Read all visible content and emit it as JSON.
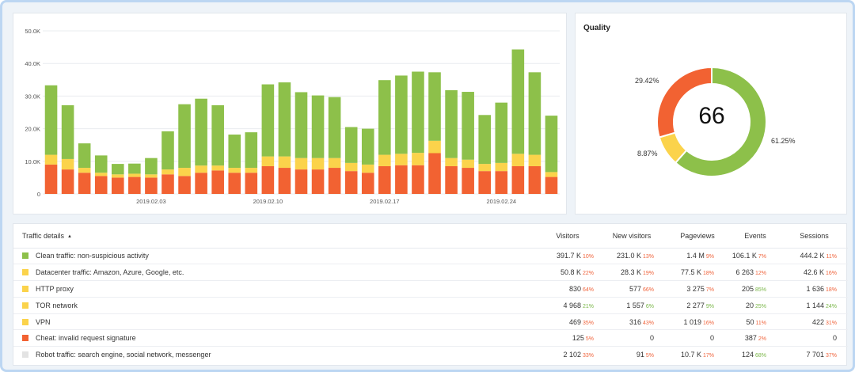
{
  "colors": {
    "clean": "#8dc04a",
    "suspicious": "#fbd34b",
    "cheat": "#f26232",
    "robot": "#e3e3e3",
    "up": "#7ab648",
    "down": "#f0643c"
  },
  "chart_data": {
    "type": "bar",
    "stacked": true,
    "ylim": [
      0,
      50000
    ],
    "yticks": [
      "0",
      "10.0K",
      "20.0K",
      "30.0K",
      "40.0K",
      "50.0K"
    ],
    "xticks": [
      {
        "label": "2019.02.03",
        "index": 6
      },
      {
        "label": "2019.02.10",
        "index": 13
      },
      {
        "label": "2019.02.17",
        "index": 20
      },
      {
        "label": "2019.02.24",
        "index": 27
      }
    ],
    "grid": true,
    "series": [
      {
        "color_key": "cheat",
        "values": [
          9000,
          7500,
          6500,
          5500,
          5000,
          5200,
          5000,
          6000,
          5500,
          6500,
          7200,
          6500,
          6500,
          8500,
          8000,
          7500,
          7500,
          8000,
          7000,
          6500,
          8500,
          8800,
          8800,
          12500,
          8500,
          8000,
          7000,
          7000,
          8500,
          8500,
          5200
        ]
      },
      {
        "color_key": "suspicious",
        "values": [
          3000,
          3200,
          1500,
          1000,
          1000,
          1000,
          1000,
          1500,
          2500,
          2200,
          1500,
          1500,
          1500,
          3000,
          3500,
          3500,
          3500,
          3000,
          2500,
          2500,
          3500,
          3500,
          3800,
          3800,
          2500,
          2500,
          2200,
          2500,
          3800,
          3500,
          1500
        ]
      },
      {
        "color_key": "clean",
        "values": [
          21300,
          16500,
          7500,
          5300,
          3200,
          3100,
          5000,
          11700,
          19500,
          20500,
          18500,
          10200,
          10900,
          22100,
          22700,
          20200,
          19200,
          18700,
          11000,
          11000,
          22900,
          24000,
          24900,
          21000,
          20800,
          20800,
          15000,
          18500,
          32000,
          25300,
          17300
        ]
      }
    ]
  },
  "quality": {
    "title": "Quality",
    "score": "66",
    "slices": [
      {
        "color_key": "clean",
        "value": 61.25,
        "label": "61.25%"
      },
      {
        "color_key": "suspicious",
        "value": 8.87,
        "label": "8.87%"
      },
      {
        "color_key": "cheat",
        "value": 29.42,
        "label": "29.42%"
      }
    ]
  },
  "table": {
    "headers": {
      "name": "Traffic details",
      "visitors": "Visitors",
      "new_visitors": "New visitors",
      "pageviews": "Pageviews",
      "events": "Events",
      "sessions": "Sessions"
    },
    "rows": [
      {
        "name": "Clean traffic: non-suspicious activity",
        "color_key": "clean",
        "cells": [
          {
            "v": "391.7 K",
            "c": "10%",
            "d": "down"
          },
          {
            "v": "231.0 K",
            "c": "13%",
            "d": "down"
          },
          {
            "v": "1.4 M",
            "c": "9%",
            "d": "down"
          },
          {
            "v": "106.1 K",
            "c": "7%",
            "d": "down"
          },
          {
            "v": "444.2 K",
            "c": "11%",
            "d": "down"
          }
        ]
      },
      {
        "name": "Datacenter traffic: Amazon, Azure, Google, etc.",
        "color_key": "suspicious",
        "cells": [
          {
            "v": "50.8 K",
            "c": "22%",
            "d": "down"
          },
          {
            "v": "28.3 K",
            "c": "19%",
            "d": "down"
          },
          {
            "v": "77.5 K",
            "c": "18%",
            "d": "down"
          },
          {
            "v": "6 263",
            "c": "12%",
            "d": "down"
          },
          {
            "v": "42.6 K",
            "c": "16%",
            "d": "down"
          }
        ]
      },
      {
        "name": "HTTP proxy",
        "color_key": "suspicious",
        "cells": [
          {
            "v": "830",
            "c": "64%",
            "d": "down"
          },
          {
            "v": "577",
            "c": "66%",
            "d": "down"
          },
          {
            "v": "3 275",
            "c": "7%",
            "d": "down"
          },
          {
            "v": "205",
            "c": "85%",
            "d": "up"
          },
          {
            "v": "1 636",
            "c": "18%",
            "d": "down"
          }
        ]
      },
      {
        "name": "TOR network",
        "color_key": "suspicious",
        "cells": [
          {
            "v": "4 968",
            "c": "21%",
            "d": "up"
          },
          {
            "v": "1 557",
            "c": "6%",
            "d": "up"
          },
          {
            "v": "2 277",
            "c": "9%",
            "d": "up"
          },
          {
            "v": "20",
            "c": "25%",
            "d": "up"
          },
          {
            "v": "1 144",
            "c": "24%",
            "d": "up"
          }
        ]
      },
      {
        "name": "VPN",
        "color_key": "suspicious",
        "cells": [
          {
            "v": "469",
            "c": "35%",
            "d": "down"
          },
          {
            "v": "316",
            "c": "43%",
            "d": "down"
          },
          {
            "v": "1 019",
            "c": "16%",
            "d": "down"
          },
          {
            "v": "50",
            "c": "11%",
            "d": "down"
          },
          {
            "v": "422",
            "c": "31%",
            "d": "down"
          }
        ]
      },
      {
        "name": "Cheat: invalid request signature",
        "color_key": "cheat",
        "cells": [
          {
            "v": "125",
            "c": "5%",
            "d": "down"
          },
          {
            "v": "0",
            "c": "",
            "d": ""
          },
          {
            "v": "0",
            "c": "",
            "d": ""
          },
          {
            "v": "387",
            "c": "2%",
            "d": "down"
          },
          {
            "v": "0",
            "c": "",
            "d": ""
          }
        ]
      },
      {
        "name": "Robot traffic: search engine, social network, messenger",
        "color_key": "robot",
        "cells": [
          {
            "v": "2 102",
            "c": "33%",
            "d": "down"
          },
          {
            "v": "91",
            "c": "5%",
            "d": "down"
          },
          {
            "v": "10.7 K",
            "c": "17%",
            "d": "down"
          },
          {
            "v": "124",
            "c": "68%",
            "d": "up"
          },
          {
            "v": "7 701",
            "c": "37%",
            "d": "down"
          }
        ]
      }
    ]
  }
}
